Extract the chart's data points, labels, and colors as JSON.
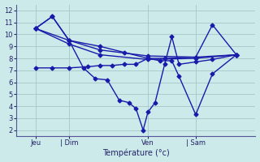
{
  "background_color": "#cceaea",
  "grid_color": "#aacccc",
  "line_color": "#1a1aaa",
  "xlabel": "Température (°c)",
  "ylim": [
    1.5,
    12.5
  ],
  "yticks": [
    2,
    3,
    4,
    5,
    6,
    7,
    8,
    9,
    10,
    11,
    12
  ],
  "xlim": [
    0,
    100
  ],
  "xtick_positions": [
    8,
    22,
    55,
    75
  ],
  "xtick_labels": [
    "Jeu",
    "| Dim",
    "Ven",
    "| Sam"
  ],
  "line1_x": [
    8,
    15,
    22,
    35,
    45,
    55,
    62,
    75,
    82,
    92
  ],
  "line1_y": [
    10.5,
    11.5,
    9.5,
    9.0,
    8.5,
    8.0,
    8.0,
    8.1,
    10.8,
    8.3
  ],
  "line2_x": [
    8,
    22,
    35,
    55,
    75,
    92
  ],
  "line2_y": [
    10.5,
    9.5,
    8.7,
    8.2,
    8.1,
    8.3
  ],
  "line3_x": [
    8,
    22,
    35,
    55,
    75,
    92
  ],
  "line3_y": [
    10.5,
    9.2,
    8.3,
    7.9,
    8.0,
    8.3
  ],
  "line4_x": [
    8,
    15,
    22,
    30,
    35,
    40,
    45,
    50,
    55,
    60,
    65,
    68,
    75,
    82,
    92
  ],
  "line4_y": [
    7.2,
    7.2,
    7.2,
    7.3,
    7.4,
    7.4,
    7.5,
    7.5,
    8.0,
    7.8,
    7.8,
    6.5,
    3.3,
    6.7,
    8.3
  ],
  "line5_x": [
    8,
    15,
    22,
    28,
    33,
    38,
    43,
    47,
    50,
    53,
    55,
    58,
    62,
    65,
    68,
    75,
    82,
    92
  ],
  "line5_y": [
    10.5,
    11.5,
    9.5,
    7.2,
    6.3,
    6.2,
    4.5,
    4.3,
    3.8,
    2.0,
    3.5,
    4.3,
    7.5,
    9.8,
    7.5,
    7.7,
    7.9,
    8.3
  ]
}
